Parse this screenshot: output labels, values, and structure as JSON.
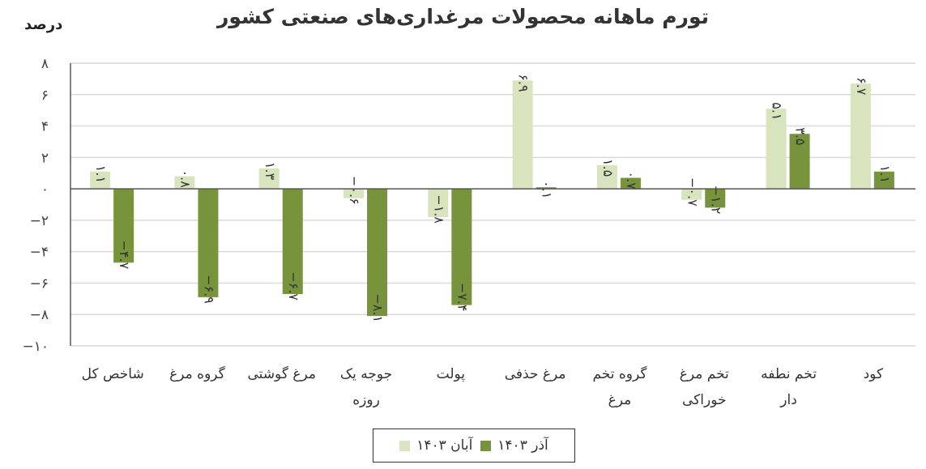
{
  "chart_data": {
    "type": "bar",
    "title": "تورم ماهانه محصولات مرغداری‌های صنعتی کشور",
    "ylabel": "درصد",
    "xlabel": "",
    "ylim": [
      -10,
      8
    ],
    "yticks": [
      8,
      6,
      4,
      2,
      0,
      -2,
      -4,
      -6,
      -8,
      -10
    ],
    "ytick_labels": [
      "۸",
      "۶",
      "۴",
      "۲",
      "۰",
      "−۲",
      "−۴",
      "−۶",
      "−۸",
      "−۱۰"
    ],
    "grid": true,
    "direction": "rtl",
    "legend_position": "bottom",
    "categories": [
      "کود",
      "تخم نطفه دار",
      "تخم مرغ خوراکی",
      "گروه تخم مرغ",
      "مرغ حذفی",
      "پولت",
      "جوجه یک روزه",
      "مرغ گوشتی",
      "گروه مرغ",
      "شاخص کل"
    ],
    "series": [
      {
        "name": "آبان ۱۴۰۳",
        "color": "#d7e4bd",
        "values": [
          6.7,
          5.1,
          -0.7,
          1.5,
          6.9,
          -1.8,
          -0.6,
          1.3,
          0.8,
          1.1
        ],
        "labels": [
          "۶.۷",
          "۵.۱",
          "−۰.۷",
          "۱.۵",
          "۶.۹",
          "−۱.۸",
          "−۰.۶",
          "۱.۳",
          "۰.۸",
          "۱.۱"
        ]
      },
      {
        "name": "آذر ۱۴۰۳",
        "color": "#77933c",
        "values": [
          1.1,
          3.5,
          -1.2,
          0.7,
          0.1,
          -7.4,
          -8.1,
          -6.7,
          -6.9,
          -4.7
        ],
        "labels": [
          "۱.۱",
          "۳.۵",
          "−۱.۲",
          "۰.۷",
          "۰.۱",
          "−۷.۴",
          "−۸.۱",
          "−۶.۷",
          "−۶.۹",
          "−۴.۷"
        ]
      }
    ]
  }
}
